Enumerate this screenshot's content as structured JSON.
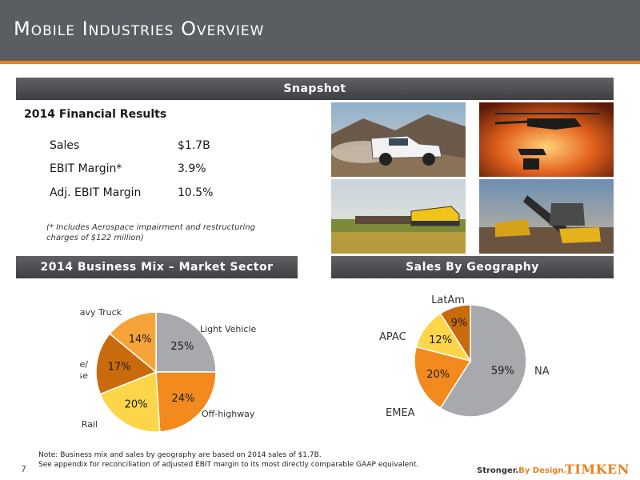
{
  "header": {
    "title": "Mobile Industries Overview"
  },
  "snapshot": {
    "label": "Snapshot"
  },
  "financial": {
    "title": "2014 Financial Results",
    "rows": [
      {
        "label": "Sales",
        "value": "$1.7B"
      },
      {
        "label": "EBIT Margin*",
        "value": "3.9%"
      },
      {
        "label": "Adj. EBIT Margin",
        "value": "10.5%"
      }
    ],
    "note": "(* Includes Aerospace impairment and restructuring charges of $122 million)"
  },
  "sections": {
    "business_mix": "2014 Business Mix – Market Sector",
    "geography": "Sales By Geography"
  },
  "photos": [
    "pickup-truck-image",
    "military-helicopter-image",
    "freight-train-image",
    "mining-shovel-image"
  ],
  "chart_data": [
    {
      "type": "pie",
      "title": "2014 Business Mix – Market Sector",
      "categories": [
        "Light Vehicle",
        "Off-highway",
        "Rail",
        "Aerospace/ Defense",
        "Heavy Truck"
      ],
      "values": [
        25,
        24,
        20,
        17,
        14
      ],
      "value_labels": [
        "25%",
        "24%",
        "20%",
        "17%",
        "14%"
      ],
      "colors": [
        "#a7a9ac",
        "#f28a1e",
        "#fdd549",
        "#c96b0c",
        "#f6a43a"
      ]
    },
    {
      "type": "pie",
      "title": "Sales By Geography",
      "categories": [
        "NA",
        "EMEA",
        "APAC",
        "LatAm"
      ],
      "values": [
        59,
        20,
        12,
        9
      ],
      "value_labels": [
        "59%",
        "20%",
        "12%",
        "9%"
      ],
      "colors": [
        "#a7a9ac",
        "#f28a1e",
        "#fdd549",
        "#c96b0c"
      ]
    }
  ],
  "footer": {
    "note_line1": "Note: Business mix and sales by geography are based on 2014 sales of $1.7B.",
    "note_line2": "See appendix for reconciliation of adjusted EBIT margin to its most directly comparable GAAP equivalent.",
    "page_number": "7",
    "tagline_a": "Stronger.",
    "tagline_b": "By Design.",
    "logo": "TIMKEN"
  }
}
